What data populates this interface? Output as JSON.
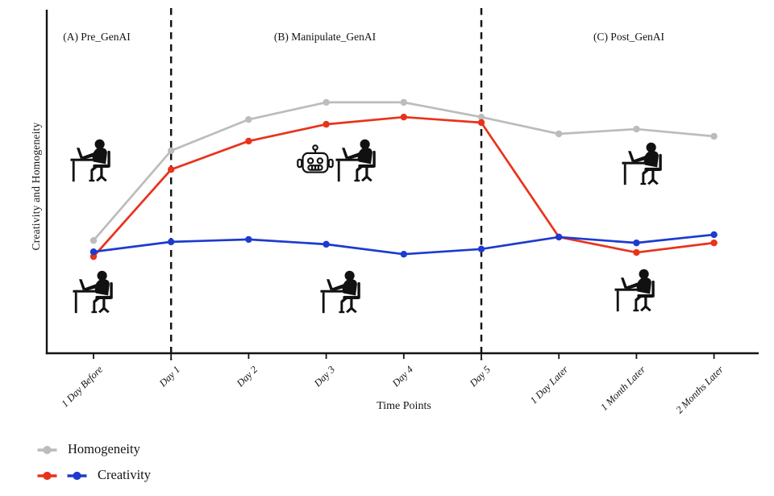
{
  "chart_data": {
    "type": "line",
    "title": "",
    "xlabel": "Time Points",
    "ylabel": "Creativity and Homogeneity",
    "categories": [
      "1 Day Before",
      "Day 1",
      "Day 2",
      "Day 3",
      "Day 4",
      "Day 5",
      "1 Day Later",
      "1 Month Later",
      "2 Months Later"
    ],
    "ylim": [
      0,
      1
    ],
    "grid": false,
    "axis_color": "#141414",
    "legend_position": "bottom-left",
    "series": [
      {
        "name": "Homogeneity",
        "color": "#bcbcbc",
        "values": [
          0.329,
          0.591,
          0.682,
          0.732,
          0.732,
          0.689,
          0.64,
          0.654,
          0.633
        ]
      },
      {
        "name": "Creativity (red)",
        "color": "#e8331b",
        "values": [
          0.282,
          0.536,
          0.619,
          0.668,
          0.689,
          0.673,
          0.339,
          0.294,
          0.322
        ]
      },
      {
        "name": "Creativity (blue)",
        "color": "#1d3bce",
        "values": [
          0.296,
          0.325,
          0.332,
          0.318,
          0.289,
          0.304,
          0.339,
          0.322,
          0.346
        ]
      }
    ],
    "phase_dividers": {
      "style": "dashed",
      "at_categories": [
        "Day 1",
        "Day 5"
      ]
    },
    "annotations": [
      {
        "text": "(A) Pre_GenAI"
      },
      {
        "text": "(B) Manipulate_GenAI"
      },
      {
        "text": "(C) Post_GenAI"
      }
    ]
  },
  "legend": {
    "items": [
      {
        "label": "Homogeneity",
        "colors": [
          "#bcbcbc"
        ]
      },
      {
        "label": "Creativity",
        "colors": [
          "#e8331b",
          "#1d3bce"
        ]
      }
    ]
  },
  "icons": {
    "phase_a": [
      "person-working-at-laptop-icon",
      "person-working-at-laptop-icon"
    ],
    "phase_b": [
      "robot-icon",
      "person-working-at-laptop-icon",
      "person-working-at-laptop-icon"
    ],
    "phase_c": [
      "person-working-at-laptop-icon",
      "person-working-at-laptop-icon"
    ]
  }
}
